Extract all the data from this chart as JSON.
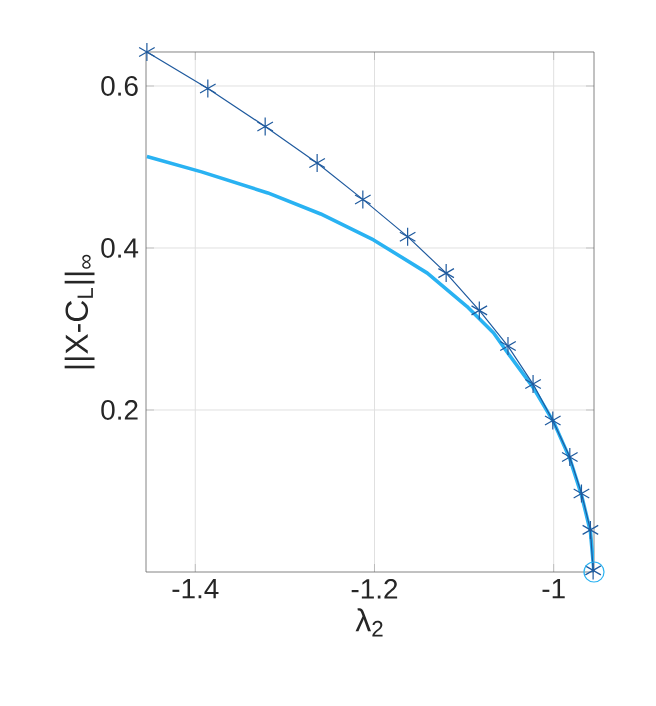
{
  "chart_data": {
    "type": "line",
    "xlabel": "λ$_{2}$",
    "ylabel": "||X-C$_{L}$||$_{∞}$",
    "xlim": [
      -1.455,
      -0.955
    ],
    "ylim": [
      0,
      0.642
    ],
    "xticks": [
      -1.4,
      -1.2,
      -1
    ],
    "yticks": [
      0.2,
      0.4,
      0.6
    ],
    "grid": true,
    "series": [
      {
        "color": "#29b2f2",
        "marker": "none",
        "x": [
          -1.454,
          -1.393,
          -1.319,
          -1.26,
          -1.201,
          -1.141,
          -1.097,
          -1.067,
          -1.051,
          -1.023,
          -1.0,
          -0.982,
          -0.969,
          -0.959,
          -0.955
        ],
        "values": [
          0.513,
          0.494,
          0.468,
          0.442,
          0.41,
          0.369,
          0.328,
          0.295,
          0.27,
          0.228,
          0.185,
          0.14,
          0.095,
          0.05,
          0
        ]
      },
      {
        "color": "#1f5a9e",
        "marker": "cross",
        "x": [
          -1.454,
          -1.386,
          -1.322,
          -1.264,
          -1.213,
          -1.163,
          -1.12,
          -1.083,
          -1.051,
          -1.023,
          -1.001,
          -0.982,
          -0.969,
          -0.959,
          -0.956
        ],
        "values": [
          0.642,
          0.597,
          0.55,
          0.505,
          0.46,
          0.414,
          0.369,
          0.323,
          0.279,
          0.232,
          0.187,
          0.142,
          0.097,
          0.052,
          0.002
        ]
      },
      {
        "type": "scatter",
        "color": "#29b2f2",
        "marker": "circle",
        "x": [
          -0.955
        ],
        "values": [
          0
        ]
      }
    ]
  }
}
